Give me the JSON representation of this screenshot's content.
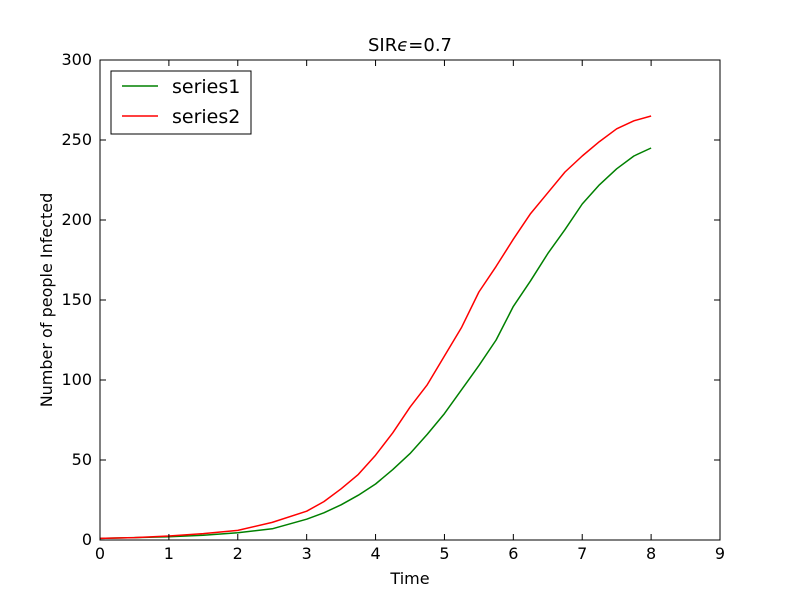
{
  "chart_data": {
    "type": "line",
    "title_base": "SIR",
    "title_epsilon": "ϵ",
    "title_rest": "=0.7",
    "xlabel": "Time",
    "ylabel": "Number of people Infected",
    "xlim": [
      0,
      9
    ],
    "ylim": [
      0,
      300
    ],
    "xticks": [
      0,
      1,
      2,
      3,
      4,
      5,
      6,
      7,
      8,
      9
    ],
    "yticks": [
      0,
      50,
      100,
      150,
      200,
      250,
      300
    ],
    "xtick_labels": [
      "0",
      "1",
      "2",
      "3",
      "4",
      "5",
      "6",
      "7",
      "8",
      "9"
    ],
    "ytick_labels": [
      "0",
      "50",
      "100",
      "150",
      "200",
      "250",
      "300"
    ],
    "grid": false,
    "legend_position": "top-left",
    "series": [
      {
        "name": "series1",
        "color": "#008000",
        "x": [
          0,
          0.5,
          1,
          1.5,
          2,
          2.5,
          3,
          3.25,
          3.5,
          3.75,
          4,
          4.25,
          4.5,
          4.75,
          5,
          5.25,
          5.5,
          5.75,
          6,
          6.25,
          6.5,
          6.75,
          7,
          7.25,
          7.5,
          7.75,
          8
        ],
        "y": [
          1,
          1.5,
          2,
          3,
          4.5,
          7,
          13,
          17,
          22,
          28,
          35,
          44,
          54,
          66,
          79,
          94,
          109,
          125,
          146,
          162,
          179,
          194,
          210,
          222,
          232,
          240,
          245
        ]
      },
      {
        "name": "series2",
        "color": "#ff0000",
        "x": [
          0,
          0.5,
          1,
          1.5,
          2,
          2.5,
          3,
          3.25,
          3.5,
          3.75,
          4,
          4.25,
          4.5,
          4.75,
          5,
          5.25,
          5.5,
          5.75,
          6,
          6.25,
          6.5,
          6.75,
          7,
          7.25,
          7.5,
          7.75,
          8
        ],
        "y": [
          1,
          1.5,
          2.5,
          4,
          6,
          11,
          18,
          24,
          32,
          41,
          53,
          67,
          83,
          97,
          115,
          133,
          155,
          171,
          188,
          204,
          217,
          230,
          240,
          249,
          257,
          262,
          265
        ]
      }
    ]
  }
}
